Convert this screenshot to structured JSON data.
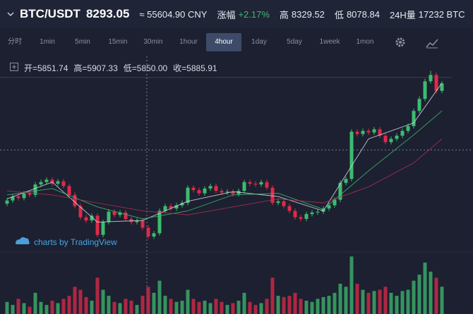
{
  "header": {
    "pair": "BTC/USDT",
    "price": "8293.05",
    "cny": "≈ 55604.90 CNY",
    "change_label": "涨幅",
    "change": "+2.17%",
    "high_label": "高",
    "high": "8329.52",
    "low_label": "低",
    "low": "8078.84",
    "volume_label": "24H量",
    "volume": "17232 BTC"
  },
  "tabs": [
    "分时",
    "1min",
    "5min",
    "15min",
    "30min",
    "1hour",
    "4hour",
    "1day",
    "5day",
    "1week",
    "1mon"
  ],
  "active_tab_index": 6,
  "ohlc": [
    "开=5851.74",
    "高=5907.33",
    "低=5850.00",
    "收=5885.91"
  ],
  "chart_data": {
    "type": "candlestick",
    "watermark": "charts by TradingView",
    "up_color": "#3dbb6f",
    "down_color": "#e0294a",
    "ylim": [
      6300,
      8500
    ],
    "candles": [
      [
        6790,
        6860,
        6760,
        6830
      ],
      [
        6830,
        6910,
        6800,
        6880
      ],
      [
        6880,
        6910,
        6830,
        6860
      ],
      [
        6860,
        6950,
        6830,
        6920
      ],
      [
        6920,
        6950,
        6870,
        6900
      ],
      [
        6900,
        7060,
        6870,
        7030
      ],
      [
        7030,
        7090,
        7000,
        7060
      ],
      [
        7060,
        7120,
        7030,
        7090
      ],
      [
        7090,
        7120,
        7010,
        7040
      ],
      [
        7040,
        7100,
        7010,
        7070
      ],
      [
        7070,
        7100,
        6980,
        7010
      ],
      [
        7010,
        7040,
        6870,
        6900
      ],
      [
        6900,
        6930,
        6730,
        6760
      ],
      [
        6760,
        6790,
        6590,
        6620
      ],
      [
        6620,
        6650,
        6550,
        6580
      ],
      [
        6580,
        6670,
        6550,
        6640
      ],
      [
        6640,
        6670,
        6370,
        6400
      ],
      [
        6400,
        6590,
        6370,
        6560
      ],
      [
        6560,
        6720,
        6530,
        6690
      ],
      [
        6690,
        6720,
        6620,
        6650
      ],
      [
        6650,
        6710,
        6620,
        6680
      ],
      [
        6680,
        6710,
        6570,
        6600
      ],
      [
        6600,
        6630,
        6530,
        6560
      ],
      [
        6560,
        6610,
        6530,
        6580
      ],
      [
        6580,
        6610,
        6460,
        6490
      ],
      [
        6490,
        6520,
        6350,
        6380
      ],
      [
        6380,
        6450,
        6350,
        6420
      ],
      [
        6420,
        6730,
        6390,
        6700
      ],
      [
        6700,
        6790,
        6670,
        6760
      ],
      [
        6760,
        6790,
        6700,
        6730
      ],
      [
        6730,
        6800,
        6700,
        6770
      ],
      [
        6770,
        6830,
        6740,
        6800
      ],
      [
        6800,
        7020,
        6770,
        6990
      ],
      [
        6990,
        7020,
        6930,
        6960
      ],
      [
        6960,
        6990,
        6890,
        6920
      ],
      [
        6920,
        7010,
        6890,
        6980
      ],
      [
        6980,
        7040,
        6950,
        7010
      ],
      [
        7010,
        7040,
        6920,
        6950
      ],
      [
        6950,
        6980,
        6900,
        6930
      ],
      [
        6930,
        6970,
        6900,
        6940
      ],
      [
        6940,
        6970,
        6880,
        6910
      ],
      [
        6910,
        6980,
        6880,
        6950
      ],
      [
        6950,
        7090,
        6920,
        7060
      ],
      [
        7060,
        7090,
        7010,
        7040
      ],
      [
        7040,
        7070,
        7000,
        7030
      ],
      [
        7030,
        7090,
        7000,
        7060
      ],
      [
        7060,
        7090,
        6960,
        6990
      ],
      [
        6990,
        7020,
        6770,
        6800
      ],
      [
        6800,
        6850,
        6770,
        6820
      ],
      [
        6820,
        6850,
        6730,
        6760
      ],
      [
        6760,
        6790,
        6670,
        6700
      ],
      [
        6700,
        6730,
        6590,
        6620
      ],
      [
        6620,
        6650,
        6570,
        6600
      ],
      [
        6600,
        6690,
        6570,
        6660
      ],
      [
        6660,
        6710,
        6630,
        6680
      ],
      [
        6680,
        6720,
        6650,
        6690
      ],
      [
        6690,
        6760,
        6660,
        6730
      ],
      [
        6730,
        6800,
        6700,
        6770
      ],
      [
        6770,
        6870,
        6740,
        6840
      ],
      [
        6840,
        7080,
        6810,
        7050
      ],
      [
        7050,
        7130,
        7020,
        7100
      ],
      [
        7100,
        7720,
        7070,
        7690
      ],
      [
        7690,
        7720,
        7630,
        7660
      ],
      [
        7660,
        7730,
        7630,
        7700
      ],
      [
        7700,
        7730,
        7650,
        7680
      ],
      [
        7680,
        7750,
        7650,
        7720
      ],
      [
        7720,
        7750,
        7610,
        7640
      ],
      [
        7640,
        7670,
        7530,
        7560
      ],
      [
        7560,
        7630,
        7530,
        7600
      ],
      [
        7600,
        7670,
        7570,
        7640
      ],
      [
        7640,
        7730,
        7610,
        7700
      ],
      [
        7700,
        7790,
        7670,
        7760
      ],
      [
        7760,
        7980,
        7730,
        7950
      ],
      [
        7950,
        8130,
        7920,
        8100
      ],
      [
        8100,
        8350,
        8070,
        8320
      ],
      [
        8320,
        8450,
        8290,
        8400
      ],
      [
        8400,
        8430,
        8170,
        8200
      ],
      [
        8200,
        8320,
        8170,
        8293
      ]
    ],
    "ma": [
      {
        "color": "#d8dce8",
        "x": [
          0,
          8,
          16,
          24,
          32,
          40,
          48,
          56,
          64,
          72,
          77
        ],
        "values": [
          6850,
          7060,
          6560,
          6580,
          6820,
          6940,
          6880,
          6700,
          7600,
          7800,
          8300
        ]
      },
      {
        "color": "#3dbb6f",
        "x": [
          0,
          8,
          16,
          24,
          32,
          40,
          48,
          56,
          64,
          72,
          77
        ],
        "values": [
          6900,
          6980,
          6750,
          6600,
          6700,
          6900,
          6920,
          6720,
          7200,
          7650,
          7950
        ]
      },
      {
        "color": "#b0305a",
        "x": [
          0,
          8,
          16,
          24,
          32,
          40,
          48,
          56,
          64,
          72,
          77
        ],
        "values": [
          6950,
          6900,
          6800,
          6700,
          6650,
          6750,
          6850,
          6800,
          7000,
          7300,
          7600
        ]
      }
    ],
    "volume": {
      "ylim": [
        0,
        100
      ],
      "values": [
        20,
        15,
        25,
        18,
        12,
        35,
        20,
        15,
        22,
        18,
        25,
        30,
        45,
        40,
        28,
        22,
        60,
        40,
        30,
        20,
        18,
        25,
        22,
        15,
        30,
        45,
        35,
        55,
        30,
        25,
        20,
        22,
        40,
        25,
        20,
        22,
        18,
        25,
        20,
        15,
        18,
        22,
        35,
        20,
        15,
        18,
        25,
        60,
        30,
        28,
        30,
        35,
        25,
        22,
        20,
        25,
        28,
        30,
        35,
        50,
        45,
        95,
        50,
        40,
        35,
        38,
        40,
        45,
        35,
        30,
        38,
        40,
        55,
        65,
        85,
        70,
        60,
        45
      ]
    }
  }
}
